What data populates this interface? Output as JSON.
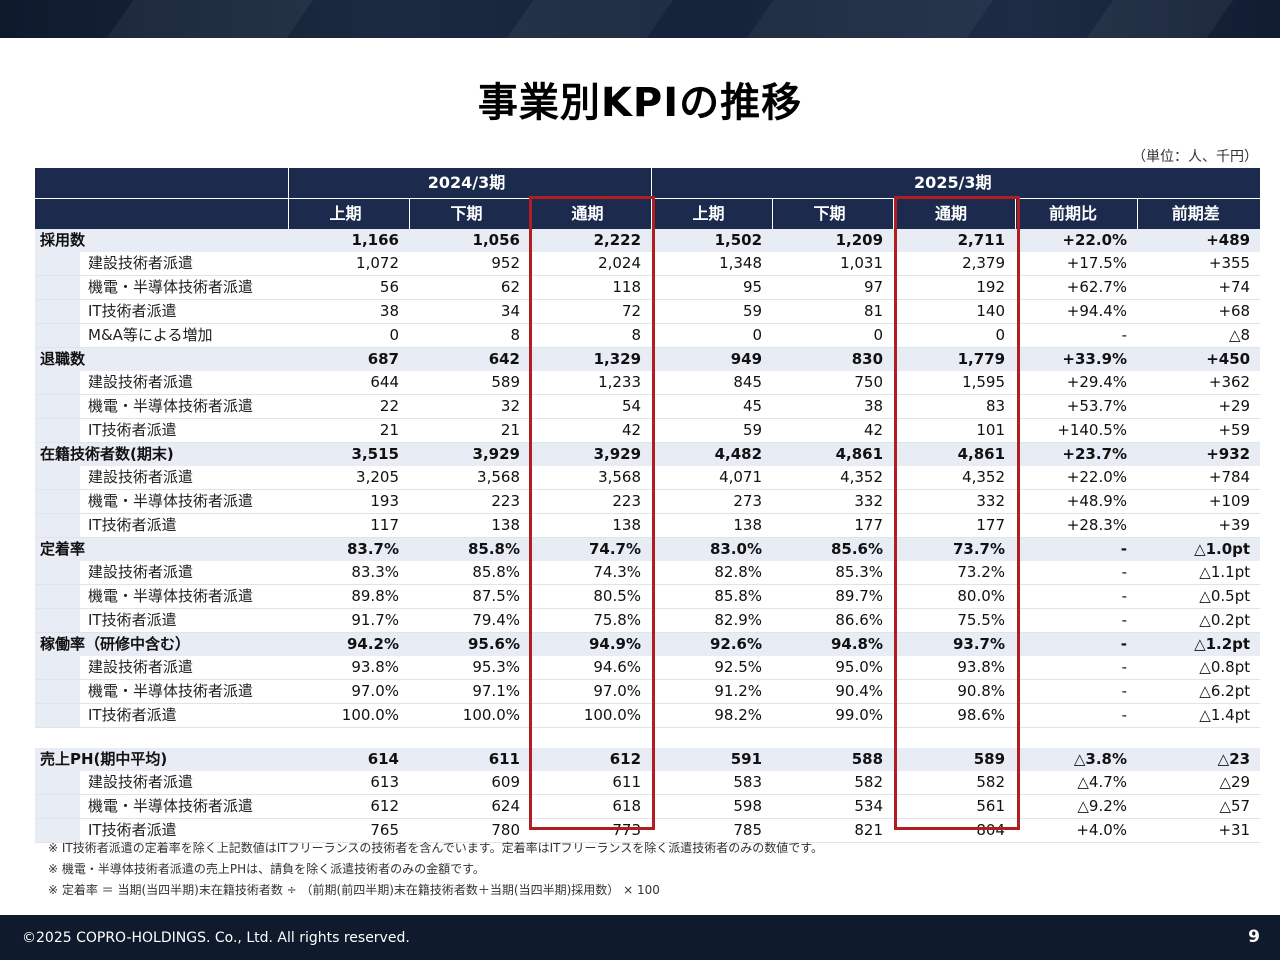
{
  "page": {
    "title": "事業別KPIの推移",
    "unit_note": "（単位：人、千円）",
    "footer": "©2025 COPRO-HOLDINGS. Co., Ltd. All rights reserved.",
    "page_number": "9"
  },
  "table": {
    "period_a": "2024/3期",
    "period_b": "2025/3期",
    "columns_a": [
      "上期",
      "下期",
      "通期"
    ],
    "columns_b": [
      "上期",
      "下期",
      "通期",
      "前期比",
      "前期差"
    ],
    "highlight_color": "#b01e23",
    "header_color": "#1c2b4d",
    "sections": [
      {
        "label": "採用数",
        "values": [
          "1,166",
          "1,056",
          "2,222",
          "1,502",
          "1,209",
          "2,711",
          "+22.0%",
          "+489"
        ],
        "rows": [
          {
            "label": "建設技術者派遣",
            "values": [
              "1,072",
              "952",
              "2,024",
              "1,348",
              "1,031",
              "2,379",
              "+17.5%",
              "+355"
            ]
          },
          {
            "label": "機電・半導体技術者派遣",
            "values": [
              "56",
              "62",
              "118",
              "95",
              "97",
              "192",
              "+62.7%",
              "+74"
            ]
          },
          {
            "label": "IT技術者派遣",
            "values": [
              "38",
              "34",
              "72",
              "59",
              "81",
              "140",
              "+94.4%",
              "+68"
            ]
          },
          {
            "label": "M&A等による増加",
            "values": [
              "0",
              "8",
              "8",
              "0",
              "0",
              "0",
              "-",
              "△8"
            ]
          }
        ]
      },
      {
        "label": "退職数",
        "values": [
          "687",
          "642",
          "1,329",
          "949",
          "830",
          "1,779",
          "+33.9%",
          "+450"
        ],
        "rows": [
          {
            "label": "建設技術者派遣",
            "values": [
              "644",
              "589",
              "1,233",
              "845",
              "750",
              "1,595",
              "+29.4%",
              "+362"
            ]
          },
          {
            "label": "機電・半導体技術者派遣",
            "values": [
              "22",
              "32",
              "54",
              "45",
              "38",
              "83",
              "+53.7%",
              "+29"
            ]
          },
          {
            "label": "IT技術者派遣",
            "values": [
              "21",
              "21",
              "42",
              "59",
              "42",
              "101",
              "+140.5%",
              "+59"
            ]
          }
        ]
      },
      {
        "label": "在籍技術者数(期末)",
        "values": [
          "3,515",
          "3,929",
          "3,929",
          "4,482",
          "4,861",
          "4,861",
          "+23.7%",
          "+932"
        ],
        "rows": [
          {
            "label": "建設技術者派遣",
            "values": [
              "3,205",
              "3,568",
              "3,568",
              "4,071",
              "4,352",
              "4,352",
              "+22.0%",
              "+784"
            ]
          },
          {
            "label": "機電・半導体技術者派遣",
            "values": [
              "193",
              "223",
              "223",
              "273",
              "332",
              "332",
              "+48.9%",
              "+109"
            ]
          },
          {
            "label": "IT技術者派遣",
            "values": [
              "117",
              "138",
              "138",
              "138",
              "177",
              "177",
              "+28.3%",
              "+39"
            ]
          }
        ]
      },
      {
        "label": "定着率",
        "values": [
          "83.7%",
          "85.8%",
          "74.7%",
          "83.0%",
          "85.6%",
          "73.7%",
          "-",
          "△1.0pt"
        ],
        "rows": [
          {
            "label": "建設技術者派遣",
            "values": [
              "83.3%",
              "85.8%",
              "74.3%",
              "82.8%",
              "85.3%",
              "73.2%",
              "-",
              "△1.1pt"
            ]
          },
          {
            "label": "機電・半導体技術者派遣",
            "values": [
              "89.8%",
              "87.5%",
              "80.5%",
              "85.8%",
              "89.7%",
              "80.0%",
              "-",
              "△0.5pt"
            ]
          },
          {
            "label": "IT技術者派遣",
            "values": [
              "91.7%",
              "79.4%",
              "75.8%",
              "82.9%",
              "86.6%",
              "75.5%",
              "-",
              "△0.2pt"
            ]
          }
        ]
      },
      {
        "label": "稼働率（研修中含む）",
        "values": [
          "94.2%",
          "95.6%",
          "94.9%",
          "92.6%",
          "94.8%",
          "93.7%",
          "-",
          "△1.2pt"
        ],
        "rows": [
          {
            "label": "建設技術者派遣",
            "values": [
              "93.8%",
              "95.3%",
              "94.6%",
              "92.5%",
              "95.0%",
              "93.8%",
              "-",
              "△0.8pt"
            ]
          },
          {
            "label": "機電・半導体技術者派遣",
            "values": [
              "97.0%",
              "97.1%",
              "97.0%",
              "91.2%",
              "90.4%",
              "90.8%",
              "-",
              "△6.2pt"
            ]
          },
          {
            "label": "IT技術者派遣",
            "values": [
              "100.0%",
              "100.0%",
              "100.0%",
              "98.2%",
              "99.0%",
              "98.6%",
              "-",
              "△1.4pt"
            ]
          }
        ]
      },
      {
        "label": "売上PH(期中平均)",
        "spacer_before": true,
        "values": [
          "614",
          "611",
          "612",
          "591",
          "588",
          "589",
          "△3.8%",
          "△23"
        ],
        "rows": [
          {
            "label": "建設技術者派遣",
            "values": [
              "613",
              "609",
              "611",
              "583",
              "582",
              "582",
              "△4.7%",
              "△29"
            ]
          },
          {
            "label": "機電・半導体技術者派遣",
            "values": [
              "612",
              "624",
              "618",
              "598",
              "534",
              "561",
              "△9.2%",
              "△57"
            ]
          },
          {
            "label": "IT技術者派遣",
            "values": [
              "765",
              "780",
              "773",
              "785",
              "821",
              "804",
              "+4.0%",
              "+31"
            ]
          }
        ]
      }
    ]
  },
  "notes": [
    "※ IT技術者派遣の定着率を除く上記数値はITフリーランスの技術者を含んでいます。定着率はITフリーランスを除く派遣技術者のみの数値です。",
    "※ 機電・半導体技術者派遣の売上PHは、請負を除く派遣技術者のみの金額です。",
    "※ 定着率 ＝ 当期(当四半期)末在籍技術者数 ÷ （前期(前四半期)末在籍技術者数＋当期(当四半期)採用数） × 100"
  ]
}
